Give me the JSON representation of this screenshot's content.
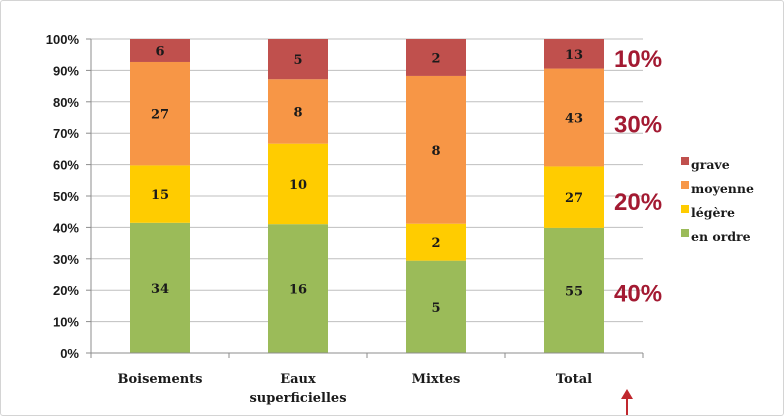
{
  "chart_data": {
    "type": "bar",
    "stacked": true,
    "normalized": true,
    "categories": [
      "Boisements",
      "Eaux superficielles",
      "Mixtes",
      "Total"
    ],
    "category_lines": [
      [
        "Boisements"
      ],
      [
        "Eaux",
        "superficielles"
      ],
      [
        "Mixtes"
      ],
      [
        "Total"
      ]
    ],
    "series": [
      {
        "name": "en ordre",
        "color": "#9bbb59",
        "values": [
          34,
          16,
          5,
          55
        ]
      },
      {
        "name": "légère",
        "color": "#ffcc00",
        "values": [
          15,
          10,
          2,
          27
        ]
      },
      {
        "name": "moyenne",
        "color": "#f79646",
        "values": [
          27,
          8,
          8,
          43
        ]
      },
      {
        "name": "grave",
        "color": "#c0504d",
        "values": [
          6,
          5,
          2,
          13
        ]
      }
    ],
    "legend_order": [
      "grave",
      "moyenne",
      "légère",
      "en ordre"
    ],
    "legend_position": "right",
    "y_ticks": [
      "0%",
      "10%",
      "20%",
      "30%",
      "40%",
      "50%",
      "60%",
      "70%",
      "80%",
      "90%",
      "100%"
    ],
    "ylim": [
      0,
      100
    ],
    "grid": true,
    "annotations": [
      {
        "text": "10%",
        "series": "grave"
      },
      {
        "text": "30%",
        "series": "moyenne"
      },
      {
        "text": "20%",
        "series": "légère"
      },
      {
        "text": "40%",
        "series": "en ordre"
      }
    ],
    "annotation_color": "#a31a32",
    "title": "",
    "xlabel": "",
    "ylabel": ""
  }
}
